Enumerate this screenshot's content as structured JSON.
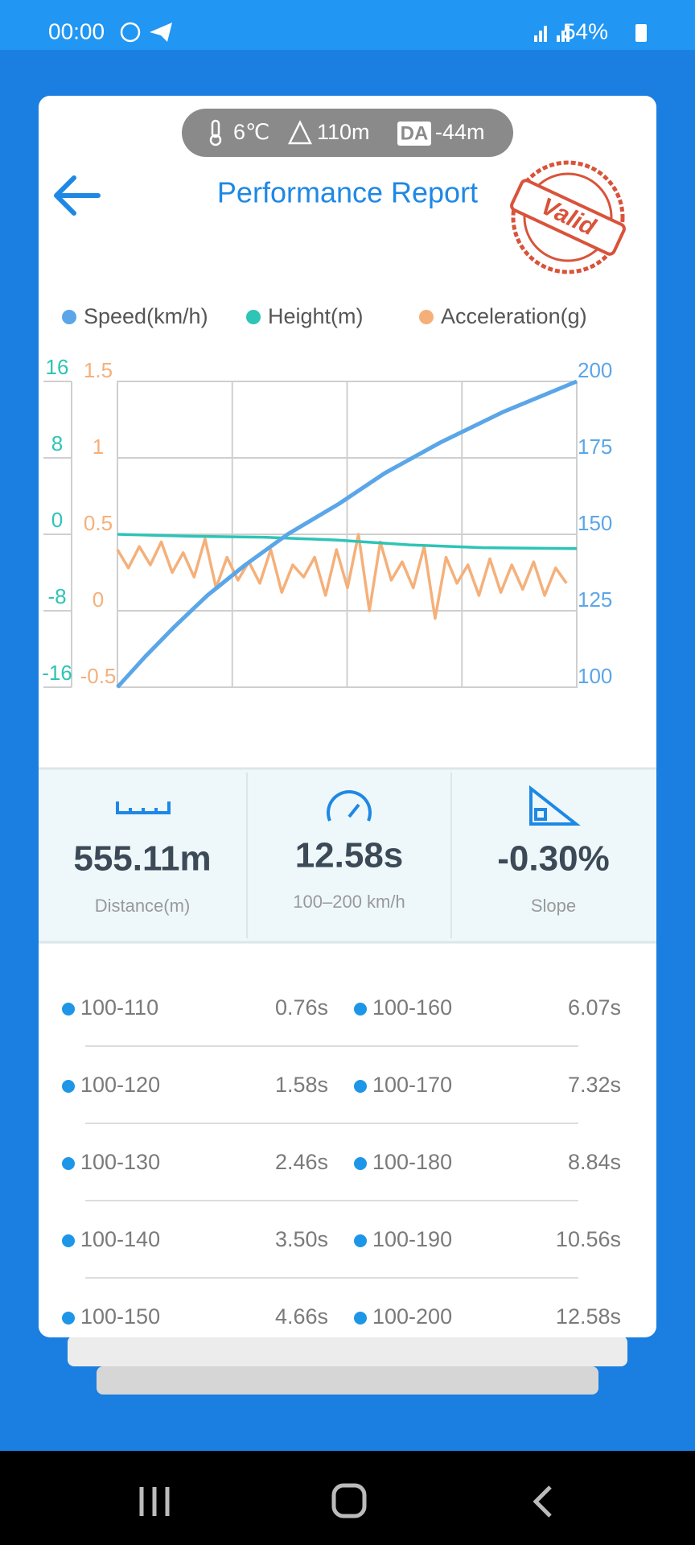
{
  "status_bar": {
    "time": "00:00",
    "battery": "54%"
  },
  "conditions": {
    "temperature": "6℃",
    "altitude": "110m",
    "density_altitude_badge": "DA",
    "density_altitude": "-44m"
  },
  "header": {
    "title": "Performance Report",
    "stamp": "Valid"
  },
  "chart_data": {
    "type": "line",
    "series": [
      {
        "name": "Speed(km/h)",
        "color": "#5aa6e8",
        "axis": "y",
        "x": [
          0,
          0.76,
          1.58,
          2.46,
          3.5,
          4.66,
          6.07,
          7.32,
          8.84,
          10.56,
          12.58
        ],
        "values": [
          100,
          110,
          120,
          130,
          140,
          150,
          160,
          170,
          180,
          190,
          200
        ]
      },
      {
        "name": "Height(m)",
        "color": "#2ec4b6",
        "axis": "y2",
        "x": [
          0,
          2,
          4,
          6,
          8,
          10,
          12.58
        ],
        "values": [
          0,
          -0.2,
          -0.3,
          -0.6,
          -1.1,
          -1.4,
          -1.5
        ]
      },
      {
        "name": "Acceleration(g)",
        "color": "#f5b07a",
        "axis": "y3",
        "x": [
          0,
          0.3,
          0.6,
          0.9,
          1.2,
          1.5,
          1.8,
          2.1,
          2.4,
          2.7,
          3.0,
          3.3,
          3.6,
          3.9,
          4.2,
          4.5,
          4.8,
          5.1,
          5.4,
          5.7,
          6.0,
          6.3,
          6.6,
          6.9,
          7.2,
          7.5,
          7.8,
          8.1,
          8.4,
          8.7,
          9.0,
          9.3,
          9.6,
          9.9,
          10.2,
          10.5,
          10.8,
          11.1,
          11.4,
          11.7,
          12.0,
          12.3
        ],
        "values": [
          0.4,
          0.28,
          0.42,
          0.3,
          0.45,
          0.25,
          0.38,
          0.22,
          0.47,
          0.15,
          0.35,
          0.2,
          0.32,
          0.18,
          0.4,
          0.12,
          0.3,
          0.22,
          0.35,
          0.1,
          0.4,
          0.15,
          0.5,
          0.0,
          0.45,
          0.2,
          0.32,
          0.15,
          0.42,
          -0.05,
          0.35,
          0.18,
          0.3,
          0.1,
          0.34,
          0.12,
          0.3,
          0.14,
          0.32,
          0.1,
          0.28,
          0.18
        ]
      }
    ],
    "xlim": [
      0,
      12.58
    ],
    "ylim": [
      100,
      200
    ],
    "yticks": [
      100,
      125,
      150,
      175,
      200
    ],
    "y2lim": [
      -16,
      16
    ],
    "y2ticks": [
      -16,
      -8,
      0,
      8,
      16
    ],
    "y3lim": [
      -0.5,
      1.5
    ],
    "y3ticks": [
      -0.5,
      0,
      0.5,
      1,
      1.5
    ],
    "grid": true
  },
  "summary": [
    {
      "value": "555.11m",
      "label": "Distance(m)"
    },
    {
      "value": "12.58s",
      "label": "100–200 km/h"
    },
    {
      "value": "-0.30%",
      "label": "Slope"
    }
  ],
  "splits": [
    {
      "range": "100-110",
      "time": "0.76s"
    },
    {
      "range": "100-160",
      "time": "6.07s"
    },
    {
      "range": "100-120",
      "time": "1.58s"
    },
    {
      "range": "100-170",
      "time": "7.32s"
    },
    {
      "range": "100-130",
      "time": "2.46s"
    },
    {
      "range": "100-180",
      "time": "8.84s"
    },
    {
      "range": "100-140",
      "time": "3.50s"
    },
    {
      "range": "100-190",
      "time": "10.56s"
    },
    {
      "range": "100-150",
      "time": "4.66s"
    },
    {
      "range": "100-200",
      "time": "12.58s"
    }
  ]
}
